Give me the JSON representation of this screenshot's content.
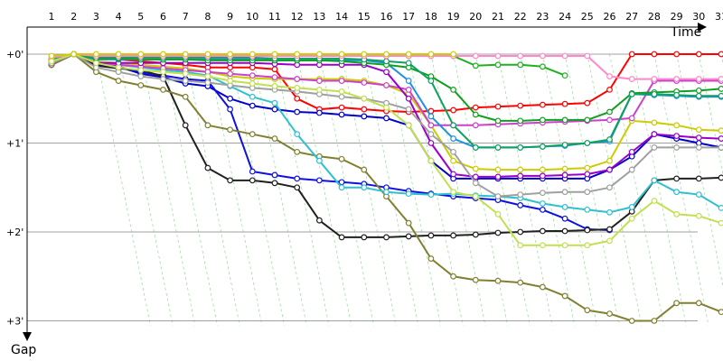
{
  "chart_data": {
    "type": "line",
    "title": "",
    "xlabel": "Time",
    "ylabel": "Gap",
    "x": [
      1,
      2,
      3,
      4,
      5,
      6,
      7,
      8,
      9,
      10,
      11,
      12,
      13,
      14,
      15,
      16,
      17,
      18,
      19,
      20,
      21,
      22,
      23,
      24,
      25,
      26,
      27,
      28,
      29,
      30,
      31
    ],
    "x_tick_labels": [
      "1",
      "2",
      "3",
      "4",
      "5",
      "6",
      "7",
      "8",
      "9",
      "10",
      "11",
      "12",
      "13",
      "14",
      "15",
      "16",
      "17",
      "18",
      "19",
      "20",
      "21",
      "22",
      "23",
      "24",
      "25",
      "26",
      "27",
      "28",
      "29",
      "30",
      "31"
    ],
    "y_tick_labels": [
      {
        "value": 0,
        "label": "+0'"
      },
      {
        "value": 1,
        "label": "+1'"
      },
      {
        "value": 2,
        "label": "+2'"
      },
      {
        "value": 3,
        "label": "+3'"
      }
    ],
    "ylim": [
      0,
      3
    ],
    "y_inverted": true,
    "grid": "horizontal",
    "series": [
      {
        "color": "#ff0000",
        "values": [
          0.12,
          0.0,
          0.04,
          0.06,
          0.08,
          0.1,
          0.12,
          0.15,
          0.15,
          0.15,
          0.17,
          0.5,
          0.62,
          0.6,
          0.62,
          0.64,
          0.65,
          0.64,
          0.63,
          0.6,
          0.59,
          0.58,
          0.57,
          0.56,
          0.55,
          0.4,
          0.0,
          0.0,
          0.0,
          0.0,
          0.0
        ]
      },
      {
        "color": "#0000cc",
        "values": [
          0.1,
          0.0,
          0.12,
          0.14,
          0.22,
          0.26,
          0.33,
          0.36,
          0.5,
          0.58,
          0.62,
          0.65,
          0.66,
          0.68,
          0.7,
          0.72,
          0.8,
          1.2,
          1.4,
          1.4,
          1.4,
          1.4,
          1.4,
          1.4,
          1.4,
          1.3,
          1.15,
          0.9,
          0.95,
          1.0,
          1.05
        ]
      },
      {
        "color": "#1010e0",
        "values": [
          0.12,
          0.0,
          0.1,
          0.14,
          0.2,
          0.24,
          0.28,
          0.3,
          0.62,
          1.32,
          1.36,
          1.4,
          1.42,
          1.44,
          1.46,
          1.5,
          1.54,
          1.57,
          1.6,
          1.62,
          1.64,
          1.7,
          1.75,
          1.85,
          1.97,
          1.98,
          null,
          null,
          null,
          null,
          null
        ]
      },
      {
        "color": "#202020",
        "values": [
          0.12,
          0.0,
          0.13,
          0.16,
          0.18,
          0.25,
          0.8,
          1.28,
          1.42,
          1.42,
          1.45,
          1.5,
          1.87,
          2.06,
          2.06,
          2.06,
          2.05,
          2.04,
          2.04,
          2.03,
          2.01,
          2.0,
          1.99,
          1.99,
          1.98,
          1.97,
          1.77,
          1.42,
          1.4,
          1.4,
          1.39
        ]
      },
      {
        "color": "#808030",
        "values": [
          0.12,
          0.0,
          0.2,
          0.3,
          0.35,
          0.4,
          0.48,
          0.8,
          0.85,
          0.9,
          0.95,
          1.1,
          1.15,
          1.18,
          1.3,
          1.6,
          1.9,
          2.3,
          2.5,
          2.54,
          2.55,
          2.57,
          2.62,
          2.72,
          2.88,
          2.92,
          3.0,
          3.0,
          2.8,
          2.8,
          2.9
        ]
      },
      {
        "color": "#cccc00",
        "values": [
          0.1,
          0.0,
          0.08,
          0.1,
          0.12,
          0.14,
          0.16,
          0.2,
          0.25,
          0.27,
          0.28,
          0.28,
          0.28,
          0.28,
          0.3,
          0.35,
          0.45,
          0.8,
          1.2,
          1.29,
          1.3,
          1.3,
          1.3,
          1.29,
          1.28,
          1.2,
          0.75,
          0.77,
          0.8,
          0.85,
          0.86
        ]
      },
      {
        "color": "#30c0d0",
        "values": [
          0.1,
          0.0,
          0.1,
          0.12,
          0.15,
          0.18,
          0.2,
          0.24,
          0.36,
          0.48,
          0.55,
          0.9,
          1.2,
          1.5,
          1.5,
          1.55,
          1.57,
          1.58,
          1.57,
          1.59,
          1.6,
          1.62,
          1.68,
          1.72,
          1.75,
          1.78,
          1.72,
          1.42,
          1.55,
          1.58,
          1.73
        ]
      },
      {
        "color": "#cc40cc",
        "values": [
          0.1,
          0.0,
          0.1,
          0.12,
          0.14,
          0.16,
          0.18,
          0.2,
          0.22,
          0.24,
          0.26,
          0.28,
          0.3,
          0.3,
          0.32,
          0.35,
          0.4,
          0.8,
          0.8,
          0.8,
          0.79,
          0.78,
          0.77,
          0.76,
          0.75,
          0.74,
          0.72,
          0.3,
          0.3,
          0.3,
          0.3
        ]
      },
      {
        "color": "#9900cc",
        "values": [
          0.1,
          0.0,
          0.1,
          0.1,
          0.1,
          0.1,
          0.1,
          0.1,
          0.1,
          0.1,
          0.11,
          0.12,
          0.12,
          0.12,
          0.12,
          0.2,
          0.5,
          1.0,
          1.35,
          1.38,
          1.38,
          1.37,
          1.37,
          1.36,
          1.35,
          1.3,
          1.1,
          0.9,
          0.92,
          0.94,
          0.95
        ]
      },
      {
        "color": "#2090e0",
        "values": [
          0.08,
          0.0,
          0.06,
          0.06,
          0.06,
          0.06,
          0.06,
          0.06,
          0.06,
          0.06,
          0.07,
          0.07,
          0.07,
          0.07,
          0.07,
          0.1,
          0.3,
          0.7,
          0.95,
          1.05,
          1.05,
          1.05,
          1.04,
          1.03,
          1.0,
          0.98,
          0.45,
          0.46,
          0.47,
          0.48,
          0.48
        ]
      },
      {
        "color": "#20b020",
        "values": [
          0.06,
          0.0,
          0.03,
          0.03,
          0.03,
          0.03,
          0.03,
          0.02,
          0.02,
          0.02,
          0.02,
          0.02,
          0.02,
          0.02,
          0.02,
          0.02,
          0.02,
          0.02,
          0.02,
          0.13,
          0.12,
          0.12,
          0.14,
          0.24,
          null,
          null,
          null,
          null,
          null,
          null,
          null
        ]
      },
      {
        "color": "#10a020",
        "values": [
          0.06,
          0.0,
          0.05,
          0.05,
          0.06,
          0.06,
          0.06,
          0.07,
          0.07,
          0.07,
          0.07,
          0.07,
          0.07,
          0.08,
          0.1,
          0.12,
          0.15,
          0.25,
          0.4,
          0.68,
          0.75,
          0.75,
          0.74,
          0.74,
          0.74,
          0.65,
          0.44,
          0.43,
          0.42,
          0.41,
          0.39
        ]
      },
      {
        "color": "#10a060",
        "values": [
          0.06,
          0.0,
          0.04,
          0.04,
          0.04,
          0.04,
          0.04,
          0.04,
          0.04,
          0.04,
          0.05,
          0.05,
          0.05,
          0.05,
          0.06,
          0.08,
          0.1,
          0.3,
          0.8,
          1.05,
          1.05,
          1.05,
          1.04,
          1.02,
          1.0,
          0.96,
          0.45,
          0.45,
          0.46,
          0.47,
          0.47
        ]
      },
      {
        "color": "#ff88cc",
        "values": [
          0.04,
          0.0,
          0.02,
          0.02,
          0.02,
          0.02,
          0.02,
          0.02,
          0.02,
          0.02,
          0.02,
          0.02,
          0.02,
          0.02,
          0.02,
          0.02,
          0.02,
          0.02,
          0.02,
          0.02,
          0.02,
          0.02,
          0.02,
          0.02,
          0.02,
          0.25,
          0.28,
          0.28,
          0.28,
          0.28,
          0.28
        ]
      },
      {
        "color": "#a0a0a0",
        "values": [
          0.1,
          0.0,
          0.15,
          0.2,
          0.25,
          0.28,
          0.3,
          0.32,
          0.35,
          0.38,
          0.4,
          0.42,
          0.45,
          0.48,
          0.5,
          0.55,
          0.62,
          0.9,
          1.1,
          1.45,
          1.6,
          1.58,
          1.56,
          1.55,
          1.55,
          1.5,
          1.3,
          1.05,
          1.05,
          1.05,
          1.05
        ]
      },
      {
        "color": "#c0e050",
        "values": [
          0.08,
          0.0,
          0.1,
          0.15,
          0.18,
          0.2,
          0.22,
          0.25,
          0.3,
          0.33,
          0.36,
          0.38,
          0.4,
          0.42,
          0.5,
          0.6,
          0.8,
          1.2,
          1.55,
          1.6,
          1.8,
          2.15,
          2.15,
          2.15,
          2.15,
          2.1,
          1.85,
          1.65,
          1.8,
          1.82,
          1.9
        ]
      },
      {
        "color": "#cccc00",
        "values": [
          0.02,
          0.0,
          0.0,
          0.0,
          0.0,
          0.0,
          0.0,
          0.0,
          0.0,
          0.0,
          0.0,
          0.0,
          0.0,
          0.0,
          0.0,
          0.0,
          0.0,
          0.0,
          0.0,
          null,
          null,
          null,
          null,
          null,
          null,
          null,
          null,
          null,
          null,
          null,
          null
        ]
      }
    ]
  }
}
